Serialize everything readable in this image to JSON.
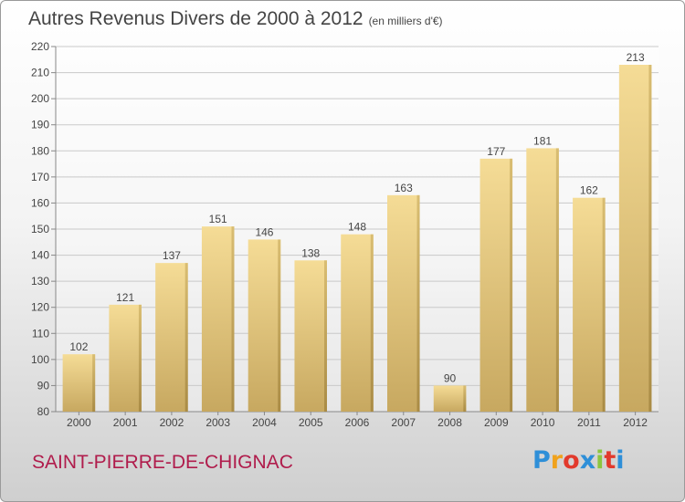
{
  "header": {
    "title": "Autres Revenus Divers de 2000 à 2012",
    "unit": "(en milliers d'€)"
  },
  "footer": {
    "city": "SAINT-PIERRE-DE-CHIGNAC",
    "logo": "Proxiti",
    "logo_colors": [
      "#2e8fd8",
      "#f0a21c",
      "#e23a2c",
      "#2e8fd8",
      "#8cc63f",
      "#e23a2c",
      "#2e8fd8"
    ]
  },
  "chart_data": {
    "type": "bar",
    "categories": [
      "2000",
      "2001",
      "2002",
      "2003",
      "2004",
      "2005",
      "2006",
      "2007",
      "2008",
      "2009",
      "2010",
      "2011",
      "2012"
    ],
    "values": [
      102,
      121,
      137,
      151,
      146,
      138,
      148,
      163,
      90,
      177,
      181,
      162,
      213
    ],
    "ylim": [
      80,
      220
    ],
    "yticks": [
      80,
      90,
      100,
      110,
      120,
      130,
      140,
      150,
      160,
      170,
      180,
      190,
      200,
      210,
      220
    ],
    "grid": true,
    "bar_color": "#e8cf8a",
    "xlabel": "",
    "ylabel": ""
  }
}
